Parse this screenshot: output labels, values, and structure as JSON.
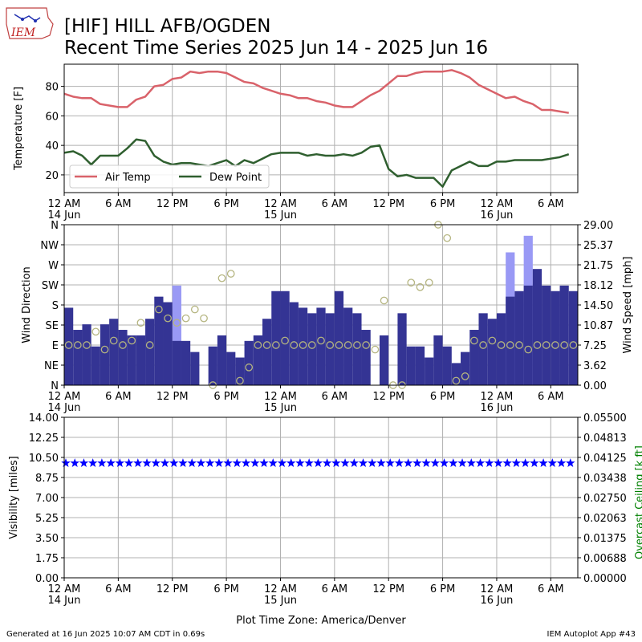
{
  "header": {
    "logo_text": "IEM",
    "title_line1": "[HIF] HILL AFB/OGDEN",
    "title_line2": "Recent Time Series 2025 Jun 14 - 2025 Jun 16"
  },
  "footer": {
    "generated": "Generated at 16 Jun 2025 10:07 AM CDT in 0.69s",
    "app": "IEM Autoplot App #43"
  },
  "colors": {
    "air_temp": "#d9626a",
    "dew_point": "#2f5f2f",
    "wind_bar": "#343494",
    "gust_bar": "#9999f5",
    "direction_marker": "#b5b580",
    "visibility": "#0000ff",
    "ceiling_axis": "#008000"
  },
  "chart_data": [
    {
      "type": "line",
      "ylabel": "Temperature [F]",
      "ylim": [
        8,
        95
      ],
      "yticks": [
        20,
        40,
        60,
        80
      ],
      "x_hours": [
        0,
        1,
        2,
        3,
        4,
        5,
        6,
        7,
        8,
        9,
        10,
        11,
        12,
        13,
        14,
        15,
        16,
        17,
        18,
        19,
        20,
        21,
        22,
        23,
        24,
        25,
        26,
        27,
        28,
        29,
        30,
        31,
        32,
        33,
        34,
        35,
        36,
        37,
        38,
        39,
        40,
        41,
        42,
        43,
        44,
        45,
        46,
        47,
        48,
        49,
        50,
        51,
        52,
        53,
        54,
        55,
        56
      ],
      "xlim": [
        0,
        57
      ],
      "xticks": [
        {
          "hour": 0,
          "label": "12 AM",
          "sub": "14 Jun"
        },
        {
          "hour": 6,
          "label": "6 AM",
          "sub": ""
        },
        {
          "hour": 12,
          "label": "12 PM",
          "sub": ""
        },
        {
          "hour": 18,
          "label": "6 PM",
          "sub": ""
        },
        {
          "hour": 24,
          "label": "12 AM",
          "sub": "15 Jun"
        },
        {
          "hour": 30,
          "label": "6 AM",
          "sub": ""
        },
        {
          "hour": 36,
          "label": "12 PM",
          "sub": ""
        },
        {
          "hour": 42,
          "label": "6 PM",
          "sub": ""
        },
        {
          "hour": 48,
          "label": "12 AM",
          "sub": "16 Jun"
        },
        {
          "hour": 54,
          "label": "6 AM",
          "sub": ""
        }
      ],
      "legend": "bottom-left",
      "series": [
        {
          "name": "Air Temp",
          "values": [
            75,
            73,
            72,
            72,
            68,
            67,
            66,
            66,
            71,
            73,
            80,
            81,
            85,
            86,
            90,
            89,
            90,
            90,
            89,
            86,
            83,
            82,
            79,
            77,
            75,
            74,
            72,
            72,
            70,
            69,
            67,
            66,
            66,
            70,
            74,
            77,
            82,
            87,
            87,
            89,
            90,
            90,
            90,
            91,
            89,
            86,
            81,
            78,
            75,
            72,
            73,
            70,
            68,
            64,
            64,
            63,
            62
          ]
        },
        {
          "name": "Dew Point",
          "values": [
            35,
            36,
            33,
            27,
            33,
            33,
            33,
            38,
            44,
            43,
            33,
            29,
            27,
            28,
            28,
            27,
            26,
            28,
            30,
            26,
            30,
            28,
            31,
            34,
            35,
            35,
            35,
            33,
            34,
            33,
            33,
            34,
            33,
            35,
            39,
            40,
            24,
            19,
            20,
            18,
            18,
            18,
            12,
            23,
            26,
            29,
            26,
            26,
            29,
            29,
            30,
            30,
            30,
            30,
            31,
            32,
            34
          ]
        }
      ]
    },
    {
      "type": "bar",
      "ylabel": "Wind Direction",
      "y2label": "Wind Speed [mph]",
      "direction_ticks": [
        "N",
        "NE",
        "E",
        "SE",
        "S",
        "SW",
        "W",
        "NW",
        "N"
      ],
      "speed_ticks": [
        "0.00",
        "3.62",
        "7.25",
        "10.87",
        "14.50",
        "18.12",
        "21.75",
        "25.37",
        "29.00"
      ],
      "speed_ylim": [
        0,
        29
      ],
      "xlim": [
        0,
        57
      ],
      "series": [
        {
          "name": "Wind Speed",
          "values": [
            14,
            10,
            11,
            7,
            11,
            12,
            10,
            9,
            9,
            12,
            16,
            15,
            8,
            8,
            6,
            0,
            7,
            9,
            6,
            5,
            8,
            9,
            12,
            17,
            17,
            15,
            14,
            13,
            14,
            13,
            17,
            14,
            13,
            10,
            0,
            9,
            0,
            13,
            7,
            7,
            5,
            9,
            7,
            4,
            6,
            10,
            13,
            12,
            13,
            16,
            17,
            18,
            21,
            18,
            17,
            18,
            17
          ]
        },
        {
          "name": "Wind Gust",
          "values": [
            0,
            0,
            0,
            0,
            0,
            0,
            0,
            0,
            0,
            0,
            0,
            0,
            18,
            0,
            0,
            0,
            0,
            0,
            0,
            0,
            0,
            0,
            0,
            0,
            0,
            0,
            0,
            0,
            0,
            0,
            0,
            0,
            0,
            0,
            0,
            0,
            0,
            0,
            0,
            0,
            0,
            0,
            0,
            0,
            0,
            0,
            0,
            0,
            0,
            24,
            15,
            27,
            0,
            0,
            0,
            0,
            0
          ]
        },
        {
          "name": "Wind Direction",
          "values": [
            90,
            90,
            90,
            120,
            80,
            100,
            90,
            100,
            140,
            90,
            170,
            150,
            140,
            150,
            170,
            150,
            0,
            240,
            250,
            10,
            40,
            90,
            90,
            90,
            100,
            90,
            90,
            90,
            100,
            90,
            90,
            90,
            90,
            90,
            80,
            190,
            0,
            0,
            230,
            220,
            230,
            360,
            330,
            10,
            20,
            100,
            90,
            100,
            90,
            90,
            90,
            80,
            90,
            90,
            90,
            90,
            90
          ]
        }
      ]
    },
    {
      "type": "scatter",
      "ylabel": "Visibility [miles]",
      "y2label": "Overcast Ceiling [k ft]",
      "ylim": [
        0,
        14
      ],
      "yticks": [
        "0.00",
        "1.75",
        "3.50",
        "5.25",
        "7.00",
        "8.75",
        "10.50",
        "12.25",
        "14.00"
      ],
      "y2ticks": [
        "0.00000",
        "0.00688",
        "0.01375",
        "0.02063",
        "0.02750",
        "0.03438",
        "0.04125",
        "0.04813",
        "0.05500"
      ],
      "xlim": [
        0,
        57
      ],
      "xlabel": "Plot Time Zone: America/Denver",
      "series": [
        {
          "name": "Visibility",
          "values": [
            10,
            10,
            10,
            10,
            10,
            10,
            10,
            10,
            10,
            10,
            10,
            10,
            10,
            10,
            10,
            10,
            10,
            10,
            10,
            10,
            10,
            10,
            10,
            10,
            10,
            10,
            10,
            10,
            10,
            10,
            10,
            10,
            10,
            10,
            10,
            10,
            10,
            10,
            10,
            10,
            10,
            10,
            10,
            10,
            10,
            10,
            10,
            10,
            10,
            10,
            10,
            10,
            10,
            10,
            10,
            10,
            10
          ]
        }
      ]
    }
  ]
}
